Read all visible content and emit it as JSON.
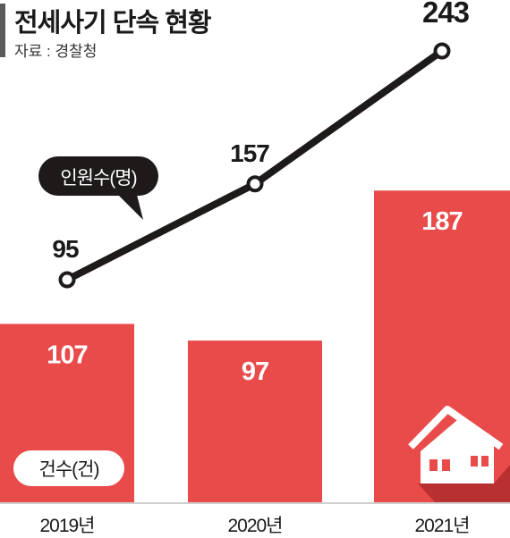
{
  "title": "전세사기 단속 현황",
  "source": "자료 : 경찰청",
  "colors": {
    "bar": "#e84b4a",
    "line": "#1f1a1a",
    "text_dark": "#1a1a1a",
    "text_light": "#ffffff",
    "axis": "#cfcfcf"
  },
  "icons": [
    "house-icon"
  ],
  "chart_data": {
    "type": "bar+line",
    "categories": [
      "2019년",
      "2020년",
      "2021년"
    ],
    "series": [
      {
        "name": "건수(건)",
        "type": "bar",
        "values": [
          107,
          97,
          187
        ]
      },
      {
        "name": "인원수(명)",
        "type": "line",
        "values": [
          95,
          157,
          243
        ]
      }
    ]
  }
}
